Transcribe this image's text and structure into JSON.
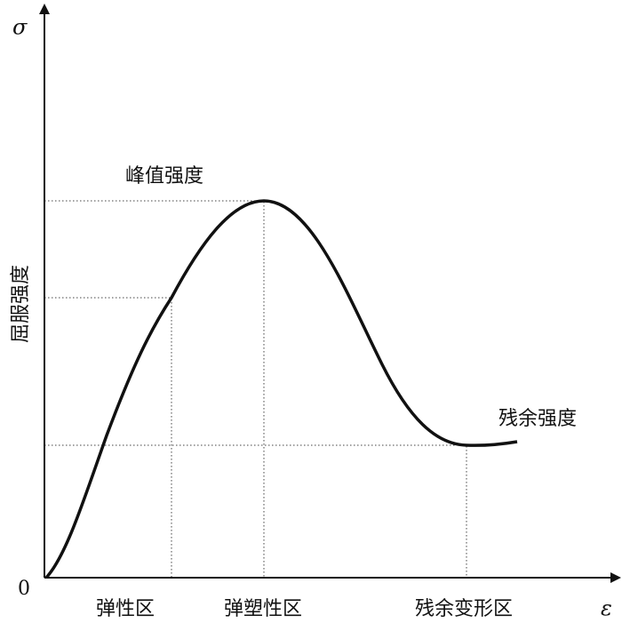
{
  "axes": {
    "y_symbol": "σ",
    "x_symbol": "ε",
    "origin": "0",
    "y_label": "屈服强度"
  },
  "annotations": {
    "peak": "峰值强度",
    "residual": "残余强度"
  },
  "zones": [
    "弹性区",
    "弹塑性区",
    "残余变形区"
  ]
}
